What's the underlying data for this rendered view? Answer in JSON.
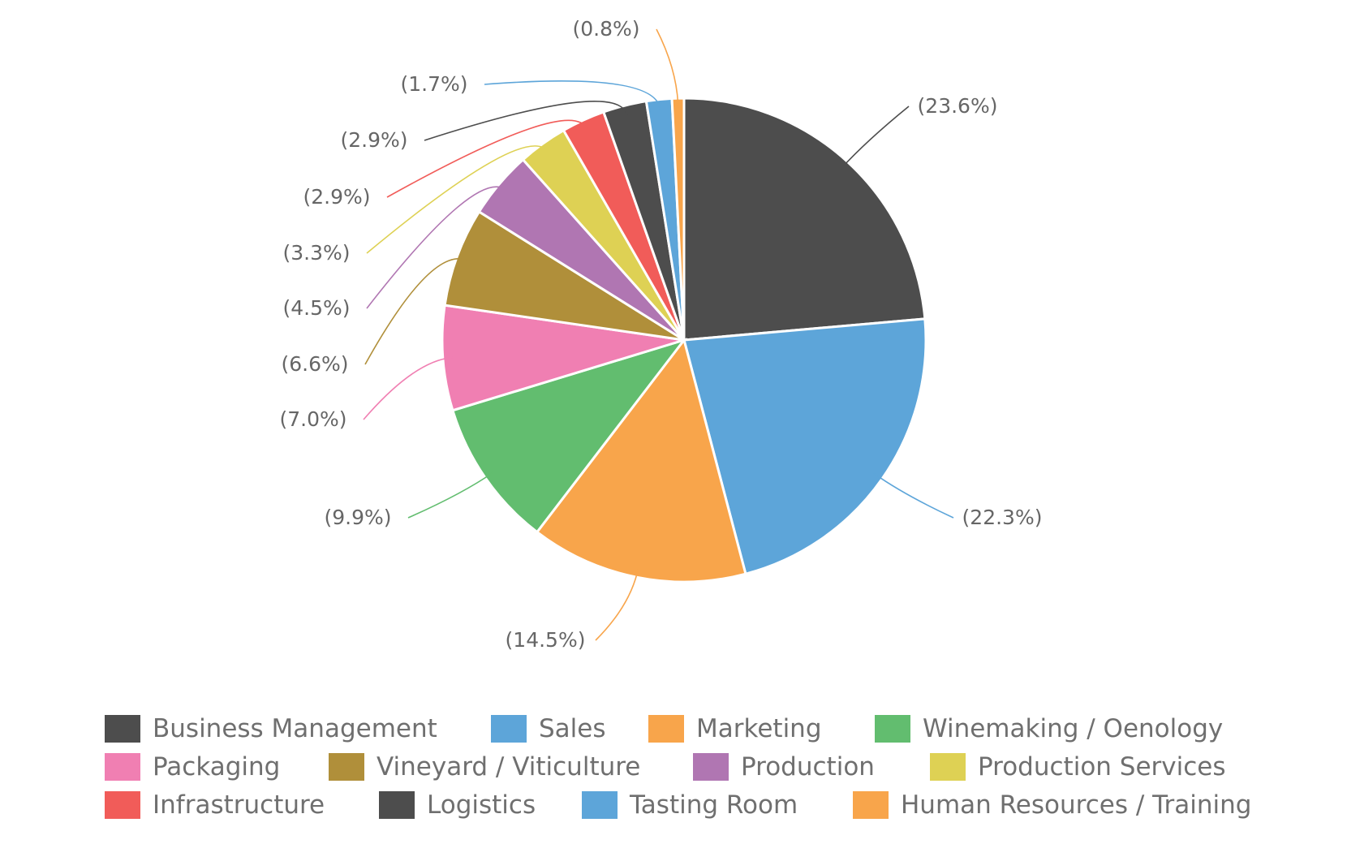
{
  "chart_data": {
    "type": "pie",
    "title": "",
    "legend_position": "bottom",
    "slices": [
      {
        "name": "Business Management",
        "value": 23.6,
        "label": "(23.6%)",
        "color": "#4d4d4d"
      },
      {
        "name": "Sales",
        "value": 22.3,
        "label": "(22.3%)",
        "color": "#5da5d9"
      },
      {
        "name": "Marketing",
        "value": 14.5,
        "label": "(14.5%)",
        "color": "#f8a54b"
      },
      {
        "name": "Winemaking / Oenology",
        "value": 9.9,
        "label": "(9.9%)",
        "color": "#62bd6f"
      },
      {
        "name": "Packaging",
        "value": 7.0,
        "label": "(7.0%)",
        "color": "#f07fb2"
      },
      {
        "name": "Vineyard / Viticulture",
        "value": 6.6,
        "label": "(6.6%)",
        "color": "#b08f3a"
      },
      {
        "name": "Production",
        "value": 4.5,
        "label": "(4.5%)",
        "color": "#b076b2"
      },
      {
        "name": "Production Services",
        "value": 3.3,
        "label": "(3.3%)",
        "color": "#ded154"
      },
      {
        "name": "Infrastructure",
        "value": 2.9,
        "label": "(2.9%)",
        "color": "#f15c59"
      },
      {
        "name": "Logistics",
        "value": 2.9,
        "label": "(2.9%)",
        "color": "#4d4d4d"
      },
      {
        "name": "Tasting Room",
        "value": 1.7,
        "label": "(1.7%)",
        "color": "#5da5d9"
      },
      {
        "name": "Human Resources / Training",
        "value": 0.8,
        "label": "(0.8%)",
        "color": "#f8a54b"
      }
    ]
  }
}
